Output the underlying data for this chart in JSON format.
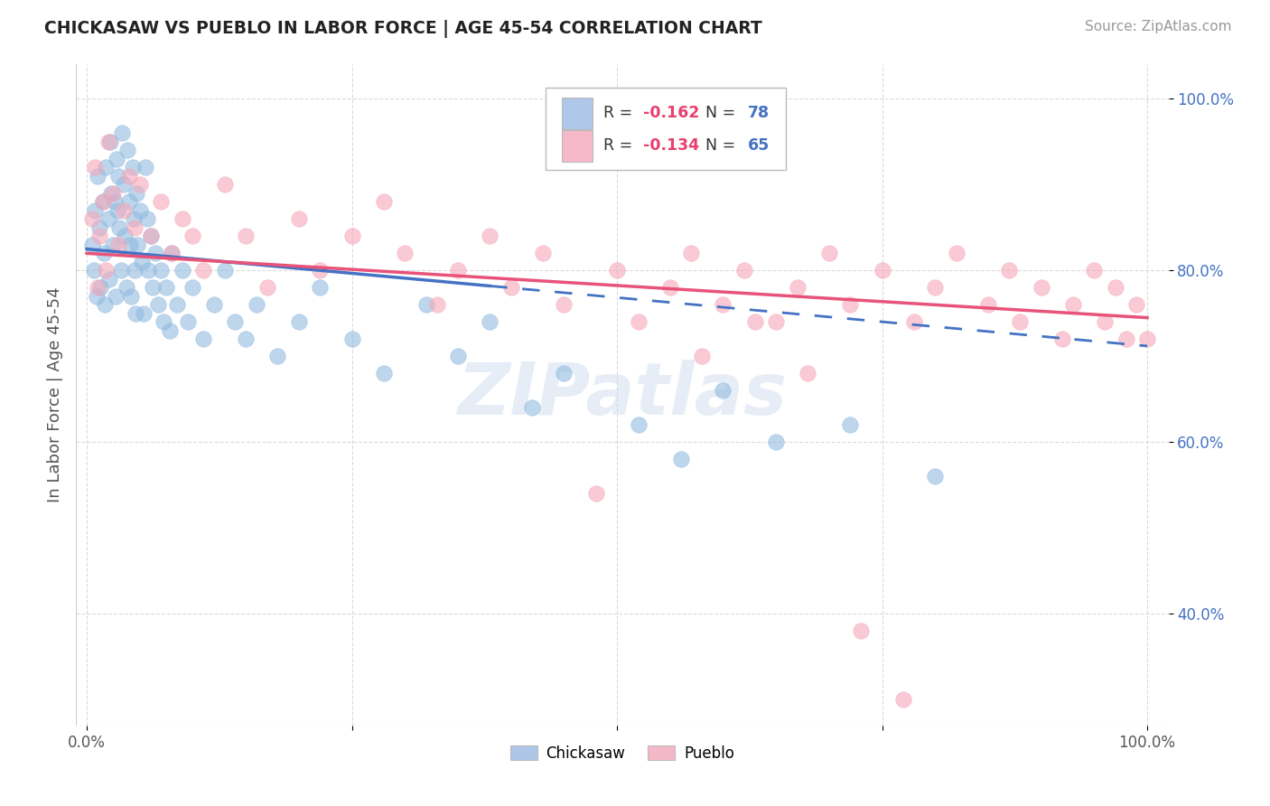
{
  "title": "CHICKASAW VS PUEBLO IN LABOR FORCE | AGE 45-54 CORRELATION CHART",
  "source": "Source: ZipAtlas.com",
  "ylabel": "In Labor Force | Age 45-54",
  "xlim": [
    -0.01,
    1.02
  ],
  "ylim": [
    0.27,
    1.04
  ],
  "xtick_positions": [
    0.0,
    0.25,
    0.5,
    0.75,
    1.0
  ],
  "xticklabels": [
    "0.0%",
    "",
    "",
    "",
    "100.0%"
  ],
  "ytick_positions": [
    0.4,
    0.6,
    0.8,
    1.0
  ],
  "ytick_labels": [
    "40.0%",
    "60.0%",
    "80.0%",
    "100.0%"
  ],
  "chickasaw_color": "#92BBE0",
  "pueblo_color": "#F5A8BA",
  "trend_chickasaw_solid_color": "#4472C4",
  "trend_pueblo_color": "#E8537A",
  "legend_chickasaw_color": "#AEC6E8",
  "legend_pueblo_color": "#F5B8C8",
  "R_chickasaw": -0.162,
  "N_chickasaw": 78,
  "R_pueblo": -0.134,
  "N_pueblo": 65,
  "trend_chick_x0": 0.0,
  "trend_chick_y0": 0.825,
  "trend_chick_x1": 0.38,
  "trend_chick_y1": 0.782,
  "trend_chick_dash_x0": 0.38,
  "trend_chick_dash_y0": 0.782,
  "trend_chick_dash_x1": 1.0,
  "trend_chick_dash_y1": 0.712,
  "trend_pueblo_x0": 0.0,
  "trend_pueblo_y0": 0.82,
  "trend_pueblo_x1": 1.0,
  "trend_pueblo_y1": 0.745,
  "chickasaw_x": [
    0.005,
    0.007,
    0.008,
    0.009,
    0.01,
    0.012,
    0.013,
    0.015,
    0.016,
    0.017,
    0.018,
    0.02,
    0.021,
    0.022,
    0.023,
    0.025,
    0.026,
    0.027,
    0.028,
    0.029,
    0.03,
    0.031,
    0.032,
    0.033,
    0.035,
    0.036,
    0.037,
    0.038,
    0.04,
    0.041,
    0.042,
    0.043,
    0.044,
    0.045,
    0.046,
    0.047,
    0.048,
    0.05,
    0.052,
    0.054,
    0.055,
    0.057,
    0.058,
    0.06,
    0.062,
    0.065,
    0.067,
    0.07,
    0.072,
    0.075,
    0.078,
    0.08,
    0.085,
    0.09,
    0.095,
    0.1,
    0.11,
    0.12,
    0.13,
    0.14,
    0.15,
    0.16,
    0.18,
    0.2,
    0.22,
    0.25,
    0.28,
    0.32,
    0.35,
    0.38,
    0.42,
    0.45,
    0.52,
    0.56,
    0.6,
    0.65,
    0.72,
    0.8
  ],
  "chickasaw_y": [
    0.83,
    0.8,
    0.87,
    0.77,
    0.91,
    0.85,
    0.78,
    0.88,
    0.82,
    0.76,
    0.92,
    0.86,
    0.79,
    0.95,
    0.89,
    0.83,
    0.88,
    0.77,
    0.93,
    0.87,
    0.91,
    0.85,
    0.8,
    0.96,
    0.9,
    0.84,
    0.78,
    0.94,
    0.88,
    0.83,
    0.77,
    0.92,
    0.86,
    0.8,
    0.75,
    0.89,
    0.83,
    0.87,
    0.81,
    0.75,
    0.92,
    0.86,
    0.8,
    0.84,
    0.78,
    0.82,
    0.76,
    0.8,
    0.74,
    0.78,
    0.73,
    0.82,
    0.76,
    0.8,
    0.74,
    0.78,
    0.72,
    0.76,
    0.8,
    0.74,
    0.72,
    0.76,
    0.7,
    0.74,
    0.78,
    0.72,
    0.68,
    0.76,
    0.7,
    0.74,
    0.64,
    0.68,
    0.62,
    0.58,
    0.66,
    0.6,
    0.62,
    0.56
  ],
  "pueblo_x": [
    0.005,
    0.008,
    0.01,
    0.012,
    0.015,
    0.018,
    0.02,
    0.025,
    0.03,
    0.035,
    0.04,
    0.045,
    0.05,
    0.06,
    0.07,
    0.08,
    0.09,
    0.1,
    0.11,
    0.13,
    0.15,
    0.17,
    0.2,
    0.22,
    0.25,
    0.28,
    0.3,
    0.33,
    0.35,
    0.38,
    0.4,
    0.43,
    0.45,
    0.5,
    0.52,
    0.55,
    0.57,
    0.6,
    0.62,
    0.65,
    0.67,
    0.7,
    0.72,
    0.75,
    0.78,
    0.8,
    0.82,
    0.85,
    0.87,
    0.88,
    0.9,
    0.92,
    0.93,
    0.95,
    0.96,
    0.97,
    0.98,
    0.99,
    1.0,
    0.48,
    0.58,
    0.63,
    0.68,
    0.73,
    0.77
  ],
  "pueblo_y": [
    0.86,
    0.92,
    0.78,
    0.84,
    0.88,
    0.8,
    0.95,
    0.89,
    0.83,
    0.87,
    0.91,
    0.85,
    0.9,
    0.84,
    0.88,
    0.82,
    0.86,
    0.84,
    0.8,
    0.9,
    0.84,
    0.78,
    0.86,
    0.8,
    0.84,
    0.88,
    0.82,
    0.76,
    0.8,
    0.84,
    0.78,
    0.82,
    0.76,
    0.8,
    0.74,
    0.78,
    0.82,
    0.76,
    0.8,
    0.74,
    0.78,
    0.82,
    0.76,
    0.8,
    0.74,
    0.78,
    0.82,
    0.76,
    0.8,
    0.74,
    0.78,
    0.72,
    0.76,
    0.8,
    0.74,
    0.78,
    0.72,
    0.76,
    0.72,
    0.54,
    0.7,
    0.74,
    0.68,
    0.38,
    0.3
  ]
}
